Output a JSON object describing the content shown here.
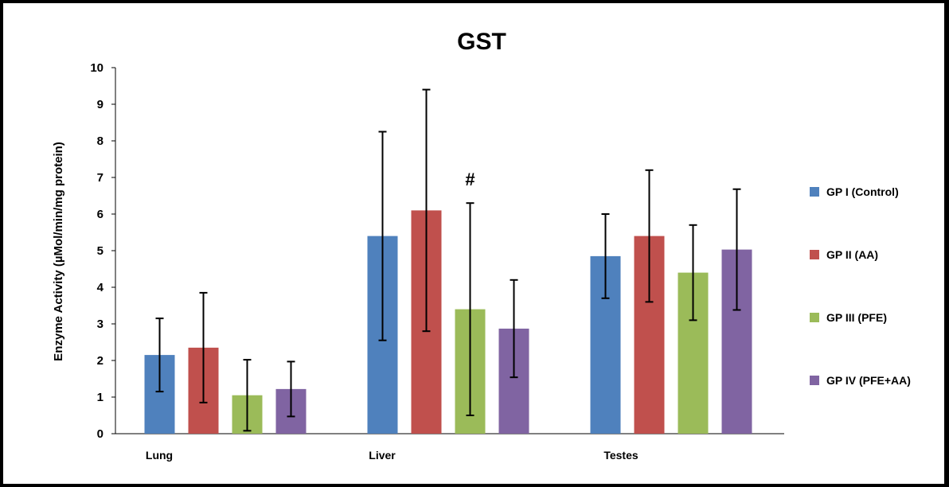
{
  "chart_data": {
    "type": "bar",
    "title": "GST",
    "ylabel": "Enzyme Activity (µMol/min/mg protein)",
    "xlabel": "",
    "ylim": [
      0,
      10
    ],
    "yticks": [
      "0",
      "1",
      "2",
      "3",
      "4",
      "5",
      "6",
      "7",
      "8",
      "9",
      "10"
    ],
    "categories": [
      "Lung",
      "Liver",
      "Testes"
    ],
    "series": [
      {
        "name": "GP I (Control)",
        "color": "#4F81BD",
        "values": [
          2.15,
          5.4,
          4.85
        ],
        "errors": [
          1.0,
          2.85,
          1.15
        ]
      },
      {
        "name": "GP II (AA)",
        "color": "#C0504D",
        "values": [
          2.35,
          6.1,
          5.4
        ],
        "errors": [
          1.5,
          3.3,
          1.8
        ]
      },
      {
        "name": "GP III (PFE)",
        "color": "#9BBB59",
        "values": [
          1.05,
          3.4,
          4.4
        ],
        "errors": [
          0.97,
          2.9,
          1.3
        ]
      },
      {
        "name": "GP IV (PFE+AA)",
        "color": "#8064A2",
        "values": [
          1.22,
          2.87,
          5.03
        ],
        "errors": [
          0.75,
          1.33,
          1.65
        ]
      }
    ],
    "annotations": [
      {
        "text": "#",
        "category": "Liver",
        "series": "GP III (PFE)"
      }
    ],
    "grid": false,
    "legend_position": "right"
  }
}
